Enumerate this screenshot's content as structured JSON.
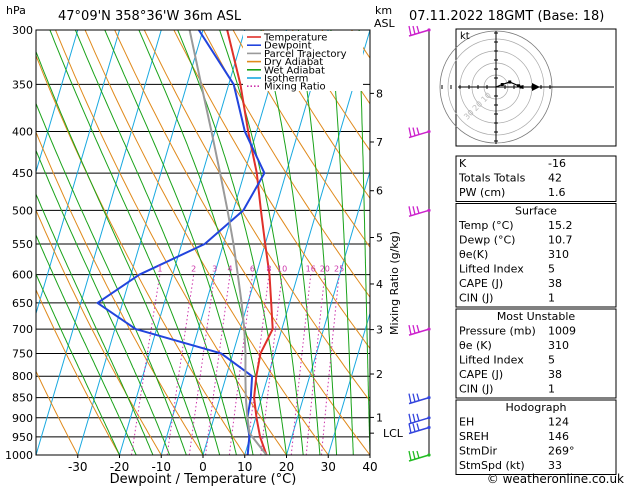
{
  "header": {
    "hpa_unit": "hPa",
    "location": "47°09'N  358°36'W  36m  ASL",
    "km_unit": "km",
    "asl_unit": "ASL",
    "datetime": "07.11.2022  18GMT  (Base: 18)"
  },
  "legend": [
    {
      "label": "Temperature",
      "color": "#e0302a"
    },
    {
      "label": "Dewpoint",
      "color": "#2244dd"
    },
    {
      "label": "Parcel Trajectory",
      "color": "#9a9a9a"
    },
    {
      "label": "Dry Adiabat",
      "color": "#e08a1c"
    },
    {
      "label": "Wet Adiabat",
      "color": "#1aa31a"
    },
    {
      "label": "Isotherm",
      "color": "#19a9e0"
    },
    {
      "label": "Mixing Ratio",
      "color": "#cc33aa"
    }
  ],
  "chart_data": {
    "type": "line",
    "title": "",
    "xlabel": "Dewpoint / Temperature (°C)",
    "ylabel": "hPa",
    "xlim": [
      -40,
      40
    ],
    "pressure_range": [
      1000,
      300
    ],
    "x_ticks": [
      "-30",
      "-20",
      "-10",
      "0",
      "10",
      "20",
      "30",
      "40"
    ],
    "pressure_ticks": [
      "300",
      "350",
      "400",
      "450",
      "500",
      "550",
      "600",
      "650",
      "700",
      "750",
      "800",
      "850",
      "900",
      "950",
      "1000"
    ],
    "km_ticks": [
      {
        "label": "8",
        "p": 359
      },
      {
        "label": "7",
        "p": 412
      },
      {
        "label": "6",
        "p": 473
      },
      {
        "label": "5",
        "p": 540
      },
      {
        "label": "4",
        "p": 616
      },
      {
        "label": "3",
        "p": 701
      },
      {
        "label": "2",
        "p": 795
      },
      {
        "label": "1",
        "p": 899
      }
    ],
    "lcl_label": "LCL",
    "lcl_pressure": 940,
    "mixing_ratio_axis_label": "Mixing Ratio (g/kg)",
    "mixing_ratio_labels": [
      "1",
      "2",
      "3",
      "4",
      "6",
      "8",
      "10",
      "16",
      "20",
      "25"
    ],
    "series": [
      {
        "name": "Temperature",
        "color": "#e0302a",
        "points": [
          [
            1000,
            15.2
          ],
          [
            950,
            12.4
          ],
          [
            900,
            10.2
          ],
          [
            850,
            8.2
          ],
          [
            800,
            7.2
          ],
          [
            750,
            6.6
          ],
          [
            700,
            7.8
          ],
          [
            650,
            5.6
          ],
          [
            600,
            3.2
          ],
          [
            550,
            0.0
          ],
          [
            500,
            -3.4
          ],
          [
            450,
            -7.0
          ],
          [
            400,
            -12.0
          ],
          [
            350,
            -17.2
          ],
          [
            300,
            -24.2
          ]
        ]
      },
      {
        "name": "Dewpoint",
        "color": "#2244dd",
        "points": [
          [
            1000,
            10.7
          ],
          [
            950,
            9.8
          ],
          [
            900,
            8.0
          ],
          [
            850,
            7.4
          ],
          [
            800,
            6.2
          ],
          [
            750,
            -2.8
          ],
          [
            700,
            -25.0
          ],
          [
            650,
            -36.0
          ],
          [
            600,
            -28.0
          ],
          [
            550,
            -14.5
          ],
          [
            500,
            -7.6
          ],
          [
            450,
            -5.2
          ],
          [
            400,
            -12.8
          ],
          [
            350,
            -18.8
          ],
          [
            300,
            -31.0
          ]
        ]
      },
      {
        "name": "Parcel Trajectory",
        "color": "#9a9a9a",
        "points": [
          [
            1000,
            15.2
          ],
          [
            940,
            9.6
          ],
          [
            900,
            8.0
          ],
          [
            850,
            6.2
          ],
          [
            800,
            4.6
          ],
          [
            750,
            3.0
          ],
          [
            700,
            1.0
          ],
          [
            650,
            -1.5
          ],
          [
            600,
            -4.4
          ],
          [
            550,
            -7.6
          ],
          [
            500,
            -11.4
          ],
          [
            450,
            -15.8
          ],
          [
            400,
            -20.8
          ],
          [
            350,
            -26.6
          ],
          [
            300,
            -33.2
          ]
        ]
      }
    ],
    "wind_barbs": [
      {
        "p": 300,
        "color": "#cc22cc"
      },
      {
        "p": 400,
        "color": "#cc22cc"
      },
      {
        "p": 500,
        "color": "#cc22cc"
      },
      {
        "p": 700,
        "color": "#cc22cc"
      },
      {
        "p": 850,
        "color": "#3344dd"
      },
      {
        "p": 900,
        "color": "#3344dd"
      },
      {
        "p": 925,
        "color": "#3344dd"
      },
      {
        "p": 1000,
        "color": "#22bb22"
      }
    ],
    "hodograph": {
      "unit": "kt",
      "ring_labels": [
        "10",
        "20",
        "30"
      ],
      "trace_kt": [
        [
          0,
          0
        ],
        [
          5,
          -2
        ],
        [
          11,
          -4
        ],
        [
          18,
          -1
        ],
        [
          20,
          0
        ]
      ]
    }
  },
  "table": {
    "block1": [
      {
        "label": "K",
        "value": "-16"
      },
      {
        "label": "Totals Totals",
        "value": "42"
      },
      {
        "label": "PW (cm)",
        "value": "1.6"
      }
    ],
    "surface_title": "Surface",
    "surface": [
      {
        "label": "Temp (°C)",
        "value": "15.2"
      },
      {
        "label": "Dewp (°C)",
        "value": "10.7"
      },
      {
        "label": "θe(K)",
        "value": "310"
      },
      {
        "label": "Lifted Index",
        "value": "5"
      },
      {
        "label": "CAPE (J)",
        "value": "38"
      },
      {
        "label": "CIN (J)",
        "value": "1"
      }
    ],
    "unstable_title": "Most Unstable",
    "unstable": [
      {
        "label": "Pressure (mb)",
        "value": "1009"
      },
      {
        "label": "θe (K)",
        "value": "310"
      },
      {
        "label": "Lifted Index",
        "value": "5"
      },
      {
        "label": "CAPE (J)",
        "value": "38"
      },
      {
        "label": "CIN (J)",
        "value": "1"
      }
    ],
    "hodo_title": "Hodograph",
    "hodo": [
      {
        "label": "EH",
        "value": "124"
      },
      {
        "label": "SREH",
        "value": "146"
      },
      {
        "label": "StmDir",
        "value": "269°"
      },
      {
        "label": "StmSpd (kt)",
        "value": "33"
      }
    ]
  },
  "footer": {
    "copyright": "© weatheronline.co.uk"
  }
}
